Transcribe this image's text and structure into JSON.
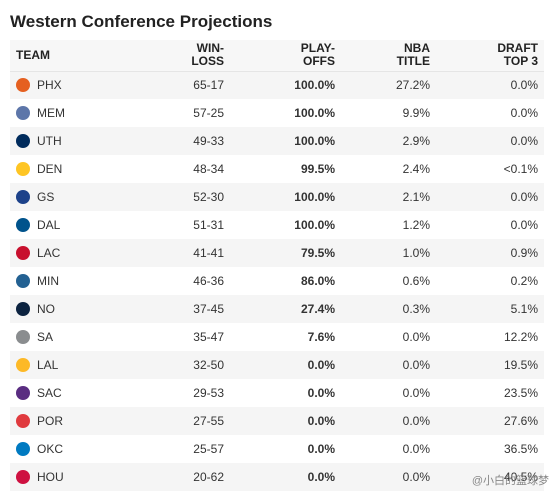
{
  "title": "Western Conference Projections",
  "headers": {
    "team": "TEAM",
    "win_loss_1": "WIN-",
    "win_loss_2": "LOSS",
    "playoffs_1": "PLAY-",
    "playoffs_2": "OFFS",
    "nba_1": "NBA",
    "nba_2": "TITLE",
    "draft_1": "DRAFT",
    "draft_2": "TOP 3"
  },
  "rows": [
    {
      "team": "PHX",
      "logo": "suns-logo-icon",
      "color": "#e56020",
      "wl": "65-17",
      "playoffs": "100.0%",
      "title": "27.2%",
      "draft": "0.0%"
    },
    {
      "team": "MEM",
      "logo": "grizzlies-logo-icon",
      "color": "#5d76a9",
      "wl": "57-25",
      "playoffs": "100.0%",
      "title": "9.9%",
      "draft": "0.0%"
    },
    {
      "team": "UTH",
      "logo": "jazz-logo-icon",
      "color": "#002b5c",
      "wl": "49-33",
      "playoffs": "100.0%",
      "title": "2.9%",
      "draft": "0.0%"
    },
    {
      "team": "DEN",
      "logo": "nuggets-logo-icon",
      "color": "#fec524",
      "wl": "48-34",
      "playoffs": "99.5%",
      "title": "2.4%",
      "draft": "<0.1%"
    },
    {
      "team": "GS",
      "logo": "warriors-logo-icon",
      "color": "#1d428a",
      "wl": "52-30",
      "playoffs": "100.0%",
      "title": "2.1%",
      "draft": "0.0%"
    },
    {
      "team": "DAL",
      "logo": "mavericks-logo-icon",
      "color": "#00538c",
      "wl": "51-31",
      "playoffs": "100.0%",
      "title": "1.2%",
      "draft": "0.0%"
    },
    {
      "team": "LAC",
      "logo": "clippers-logo-icon",
      "color": "#c8102e",
      "wl": "41-41",
      "playoffs": "79.5%",
      "title": "1.0%",
      "draft": "0.9%"
    },
    {
      "team": "MIN",
      "logo": "timberwolves-logo-icon",
      "color": "#236192",
      "wl": "46-36",
      "playoffs": "86.0%",
      "title": "0.6%",
      "draft": "0.2%"
    },
    {
      "team": "NO",
      "logo": "pelicans-logo-icon",
      "color": "#0c2340",
      "wl": "37-45",
      "playoffs": "27.4%",
      "title": "0.3%",
      "draft": "5.1%"
    },
    {
      "team": "SA",
      "logo": "spurs-logo-icon",
      "color": "#8a8d8f",
      "wl": "35-47",
      "playoffs": "7.6%",
      "title": "0.0%",
      "draft": "12.2%"
    },
    {
      "team": "LAL",
      "logo": "lakers-logo-icon",
      "color": "#fdb927",
      "wl": "32-50",
      "playoffs": "0.0%",
      "title": "0.0%",
      "draft": "19.5%"
    },
    {
      "team": "SAC",
      "logo": "kings-logo-icon",
      "color": "#5a2d81",
      "wl": "29-53",
      "playoffs": "0.0%",
      "title": "0.0%",
      "draft": "23.5%"
    },
    {
      "team": "POR",
      "logo": "trailblazers-logo-icon",
      "color": "#e03a3e",
      "wl": "27-55",
      "playoffs": "0.0%",
      "title": "0.0%",
      "draft": "27.6%"
    },
    {
      "team": "OKC",
      "logo": "thunder-logo-icon",
      "color": "#007ac1",
      "wl": "25-57",
      "playoffs": "0.0%",
      "title": "0.0%",
      "draft": "36.5%"
    },
    {
      "team": "HOU",
      "logo": "rockets-logo-icon",
      "color": "#ce1141",
      "wl": "20-62",
      "playoffs": "0.0%",
      "title": "0.0%",
      "draft": "40.5%"
    }
  ],
  "watermark": "@小白的篮球梦"
}
